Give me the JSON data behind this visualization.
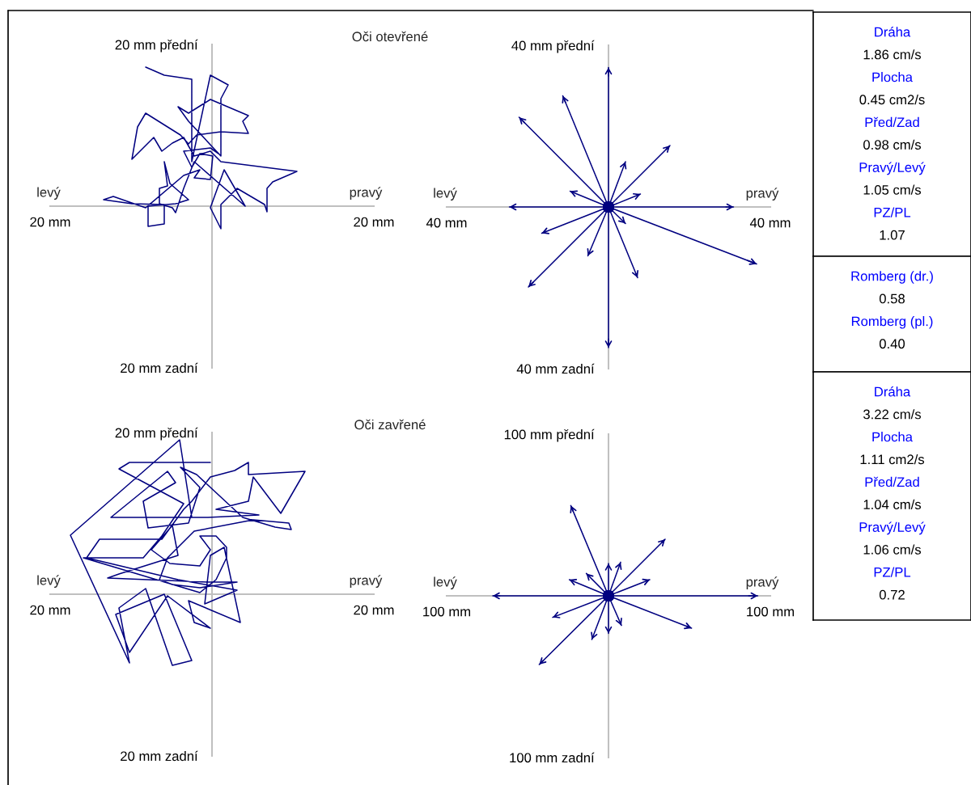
{
  "chart_data": [
    {
      "type": "line",
      "title": "Oči otevřené",
      "annotations": [
        "levý",
        "pravý"
      ],
      "xlim": [
        -20,
        20
      ],
      "ylim": [
        -20,
        20
      ],
      "xticks": [
        {
          "value": -20,
          "label": "20 mm"
        },
        {
          "value": 20,
          "label": "20 mm"
        }
      ],
      "yticks": [
        {
          "value": -20,
          "label": "20 mm zadní"
        },
        {
          "value": 20,
          "label": "20 mm přední"
        }
      ],
      "series": [
        {
          "color": "#000080",
          "x": [
            -8.2,
            -5.9,
            -2.5,
            -2.5,
            -0.2,
            2.0,
            1.1,
            1.1,
            -2.9,
            -4.2,
            -2.9,
            -0.2,
            4.5,
            3.8,
            4.5,
            1.1,
            -1.9,
            -2.9,
            -3.9,
            -8.2,
            -9.2,
            -9.9,
            -7.2,
            -6.2,
            -4.9,
            -3.5,
            -2.2,
            -0.2,
            1.1,
            10.5,
            7.5,
            6.8,
            6.8,
            6.5,
            3.1,
            1.1,
            1.1,
            -0.2,
            1.5,
            4.1,
            -2.2,
            -3.5,
            -4.5,
            -4.9,
            -6.5,
            -6.5,
            -5.5,
            -5.9,
            -5.2,
            -2.9,
            -4.5,
            -7.9,
            -7.9,
            -5.9,
            -5.9,
            -9.9,
            -13.4,
            -12.2,
            -8.2,
            -3.5,
            -1.5,
            -2.2,
            -0.2,
            0.1,
            -1.5,
            -2.5,
            -3.5,
            -0.2,
            0.8
          ],
          "values": [
            17.2,
            16.2,
            15.7,
            5.5,
            16.2,
            15.0,
            13.3,
            6.2,
            10.5,
            12.3,
            11.5,
            13.2,
            11.2,
            10.5,
            9.0,
            9.2,
            8.8,
            7.7,
            8.8,
            11.5,
            9.8,
            5.8,
            8.5,
            6.8,
            7.8,
            8.5,
            6.2,
            6.8,
            5.5,
            4.3,
            3.0,
            2.2,
            -0.7,
            0.2,
            2.2,
            0.2,
            -2.8,
            -0.2,
            4.5,
            0.0,
            5.5,
            2.2,
            -0.8,
            -0.2,
            0.3,
            2.2,
            2.5,
            5.5,
            2.8,
            0.8,
            0.3,
            0.0,
            -2.5,
            -2.2,
            0.2,
            0.3,
            0.8,
            1.2,
            -0.2,
            3.8,
            4.5,
            3.5,
            3.3,
            6.2,
            6.5,
            4.8,
            6.8,
            7.2,
            6.5
          ]
        }
      ]
    },
    {
      "type": "line",
      "annotations": [
        "levý",
        "pravý"
      ],
      "xlim": [
        -40,
        40
      ],
      "ylim": [
        -40,
        40
      ],
      "xticks": [
        {
          "value": -40,
          "label": "40 mm"
        },
        {
          "value": 40,
          "label": "40 mm"
        }
      ],
      "yticks": [
        {
          "value": -40,
          "label": "40 mm zadní"
        },
        {
          "value": 40,
          "label": "40 mm přední"
        }
      ],
      "series": [
        {
          "color": "#000080",
          "x": [
            0,
            0
          ],
          "values": [
            0,
            34.5
          ]
        },
        {
          "color": "#000080",
          "x": [
            0,
            0
          ],
          "values": [
            0,
            -34.8
          ]
        },
        {
          "color": "#000080",
          "x": [
            0,
            -24.5
          ],
          "values": [
            0,
            0
          ]
        },
        {
          "color": "#000080",
          "x": [
            0,
            30.9
          ],
          "values": [
            0,
            0
          ]
        },
        {
          "color": "#000080",
          "x": [
            0,
            -22.1
          ],
          "values": [
            0,
            22.2
          ]
        },
        {
          "color": "#000080",
          "x": [
            0,
            -11.3
          ],
          "values": [
            0,
            27.5
          ]
        },
        {
          "color": "#000080",
          "x": [
            0,
            15.2
          ],
          "values": [
            0,
            15.2
          ]
        },
        {
          "color": "#000080",
          "x": [
            0,
            4.2
          ],
          "values": [
            0,
            11.2
          ]
        },
        {
          "color": "#000080",
          "x": [
            0,
            7.9
          ],
          "values": [
            0,
            3.2
          ]
        },
        {
          "color": "#000080",
          "x": [
            0,
            -9.5
          ],
          "values": [
            0,
            3.9
          ]
        },
        {
          "color": "#000080",
          "x": [
            0,
            -16.5
          ],
          "values": [
            0,
            -6.5
          ]
        },
        {
          "color": "#000080",
          "x": [
            0,
            -19.8
          ],
          "values": [
            0,
            -19.8
          ]
        },
        {
          "color": "#000080",
          "x": [
            0,
            -5.1
          ],
          "values": [
            0,
            -12.1
          ]
        },
        {
          "color": "#000080",
          "x": [
            0,
            7.2
          ],
          "values": [
            0,
            -17.5
          ]
        },
        {
          "color": "#000080",
          "x": [
            0,
            36.6
          ],
          "values": [
            0,
            -14.1
          ]
        },
        {
          "color": "#000080",
          "x": [
            0,
            4.2
          ],
          "values": [
            0,
            -4.1
          ]
        }
      ]
    },
    {
      "type": "line",
      "title": "Oči zavřené",
      "annotations": [
        "levý",
        "pravý"
      ],
      "xlim": [
        -20,
        20
      ],
      "ylim": [
        -20,
        20
      ],
      "xticks": [
        {
          "value": -20,
          "label": "20 mm"
        },
        {
          "value": 20,
          "label": "20 mm"
        }
      ],
      "yticks": [
        {
          "value": -20,
          "label": "20 mm zadní"
        },
        {
          "value": 20,
          "label": "20 mm přední"
        }
      ],
      "series": [
        {
          "color": "#000080",
          "x": [
            -2.5,
            -4.0,
            -17.5,
            -10.2,
            -11.5,
            -8.2,
            -4.9,
            -2.5,
            -5.9,
            -11.9,
            -10.2,
            -5.5,
            -0.2,
            -2.2,
            -2.9,
            3.5,
            1.5,
            -0.2,
            -0.9,
            3.1,
            -4.2,
            -15.5,
            -13.9,
            -6.2,
            -3.5,
            -2.5,
            -0.2,
            2.8,
            4.5,
            4.5,
            11.5,
            8.5,
            5.1,
            4.5,
            0.5,
            5.8,
            -0.5,
            -12.5,
            -5.5,
            -4.5,
            -8.5,
            -7.9,
            -2.9,
            -1.5,
            -3.9,
            -1.9,
            3.8,
            7.8,
            9.8,
            9.5,
            5.1,
            -2.2,
            -5.5,
            -6.5,
            -4.9,
            -1.5,
            3.1,
            -0.5,
            -12.9,
            -11.5,
            -4.2,
            -4.9,
            -7.5,
            -5.2,
            -1.5,
            -0.2,
            -1.5,
            0.5,
            1.8,
            1.8,
            0.5,
            -1.5,
            -15.9,
            -8.5,
            -6.2,
            -3.5,
            -11.5,
            -10.2,
            -0.2
          ],
          "values": [
            9.5,
            19.1,
            7.3,
            -8.5,
            -1.7,
            0.7,
            -8.8,
            -8.2,
            0.0,
            -2.5,
            -7.2,
            -0.2,
            -4.2,
            -3.5,
            -0.8,
            -3.5,
            5.8,
            4.8,
            -1.2,
            0.5,
            1.8,
            4.5,
            6.8,
            6.8,
            10.5,
            11.5,
            14.5,
            15.3,
            16.3,
            14.8,
            15.2,
            10.0,
            14.5,
            11.5,
            10.5,
            9.8,
            9.5,
            9.5,
            15.2,
            13.8,
            11.5,
            8.2,
            8.8,
            13.2,
            15.7,
            14.8,
            9.5,
            8.3,
            8.0,
            8.8,
            9.2,
            7.8,
            4.5,
            1.8,
            1.2,
            0.8,
            1.5,
            1.5,
            2.0,
            2.5,
            4.8,
            8.5,
            5.5,
            3.8,
            3.5,
            5.5,
            7.2,
            7.2,
            5.8,
            4.5,
            1.8,
            0.2,
            4.5,
            4.5,
            7.2,
            11.2,
            15.5,
            16.3,
            16.3
          ]
        }
      ]
    },
    {
      "type": "line",
      "annotations": [
        "levý",
        "pravý"
      ],
      "xlim": [
        -100,
        100
      ],
      "ylim": [
        -100,
        100
      ],
      "xticks": [
        {
          "value": -100,
          "label": "100 mm"
        },
        {
          "value": 100,
          "label": "100 mm"
        }
      ],
      "yticks": [
        {
          "value": -100,
          "label": "100 mm zadní"
        },
        {
          "value": 100,
          "label": "100 mm přední"
        }
      ],
      "series": [
        {
          "color": "#000080",
          "x": [
            0,
            -71.5
          ],
          "values": [
            0,
            0
          ]
        },
        {
          "color": "#000080",
          "x": [
            0,
            92.2
          ],
          "values": [
            0,
            0
          ]
        },
        {
          "color": "#000080",
          "x": [
            0,
            -23.3
          ],
          "values": [
            0,
            55.8
          ]
        },
        {
          "color": "#000080",
          "x": [
            0,
            35
          ],
          "values": [
            0,
            35
          ]
        },
        {
          "color": "#000080",
          "x": [
            0,
            0
          ],
          "values": [
            0,
            20
          ]
        },
        {
          "color": "#000080",
          "x": [
            0,
            7.5
          ],
          "values": [
            0,
            20.8
          ]
        },
        {
          "color": "#000080",
          "x": [
            0,
            25.5
          ],
          "values": [
            0,
            10
          ]
        },
        {
          "color": "#000080",
          "x": [
            0,
            -24.2
          ],
          "values": [
            0,
            10
          ]
        },
        {
          "color": "#000080",
          "x": [
            0,
            -13.7
          ],
          "values": [
            0,
            13.8
          ]
        },
        {
          "color": "#000080",
          "x": [
            0,
            -34.5
          ],
          "values": [
            0,
            -13.3
          ]
        },
        {
          "color": "#000080",
          "x": [
            0,
            -42.8
          ],
          "values": [
            0,
            -42.5
          ]
        },
        {
          "color": "#000080",
          "x": [
            0,
            -10.3
          ],
          "values": [
            0,
            -27
          ]
        },
        {
          "color": "#000080",
          "x": [
            0,
            0
          ],
          "values": [
            0,
            -23.3
          ]
        },
        {
          "color": "#000080",
          "x": [
            0,
            8
          ],
          "values": [
            0,
            -18.3
          ]
        },
        {
          "color": "#000080",
          "x": [
            0,
            51.3
          ],
          "values": [
            0,
            -20
          ]
        }
      ]
    },
    {
      "type": "other",
      "annotations": [
        "Dráha",
        "1.86 cm/s",
        "Plocha",
        "0.45 cm2/s",
        "Před/Zad",
        "0.98 cm/s",
        "Pravý/Levý",
        "1.05 cm/s",
        "PZ/PL",
        "1.07"
      ]
    },
    {
      "type": "other",
      "annotations": [
        "Romberg (dr.)",
        "0.58",
        "Romberg (pl.)",
        "0.40"
      ]
    },
    {
      "type": "other",
      "annotations": [
        "Dráha",
        "3.22 cm/s",
        "Plocha",
        "1.11 cm2/s",
        "Před/Zad",
        "1.04 cm/s",
        "Pravý/Levý",
        "1.06 cm/s",
        "PZ/PL",
        "0.72"
      ]
    }
  ]
}
